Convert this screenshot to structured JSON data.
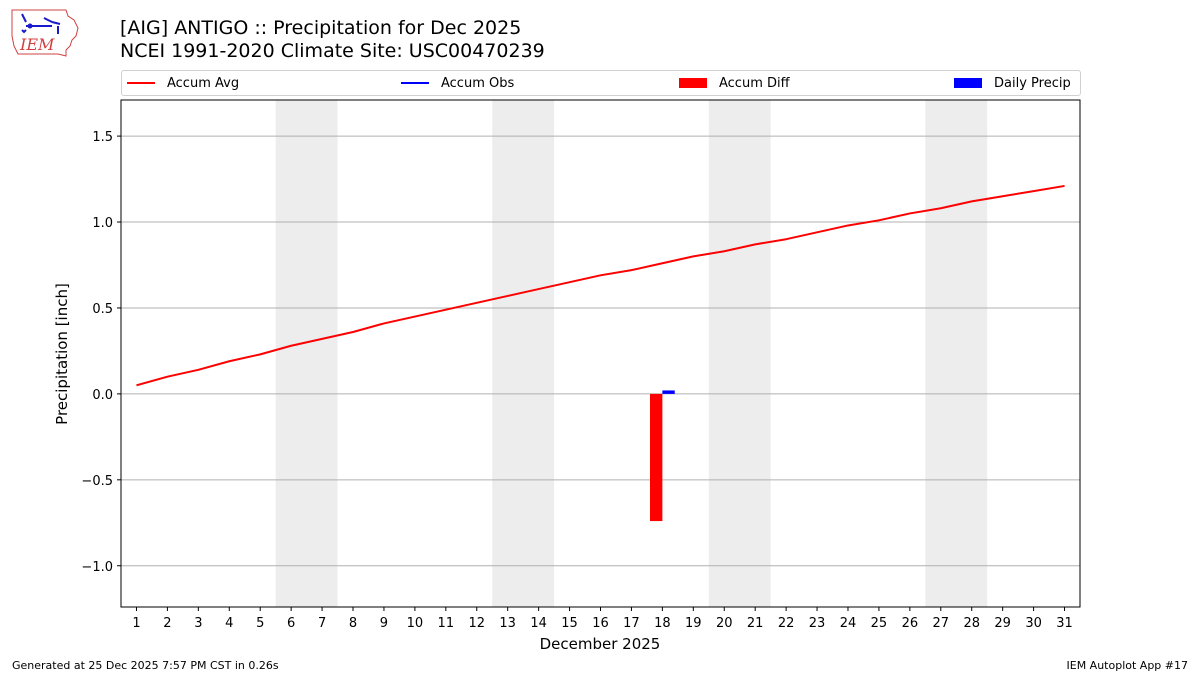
{
  "header": {
    "logo_text": "IEM",
    "title_line1": "[AIG] ANTIGO :: Precipitation for Dec 2025",
    "title_line2": "NCEI 1991-2020 Climate Site: USC00470239"
  },
  "legend": [
    {
      "label": "Accum Avg",
      "type": "line",
      "color": "#ff0000"
    },
    {
      "label": "Accum Obs",
      "type": "line",
      "color": "#0000ff"
    },
    {
      "label": "Accum Diff",
      "type": "patch",
      "color": "#ff0000"
    },
    {
      "label": "Daily Precip",
      "type": "patch",
      "color": "#0000ff"
    }
  ],
  "footer": {
    "left": "Generated at 25 Dec 2025 7:57 PM CST in 0.26s",
    "right": "IEM Autoplot App #17"
  },
  "colors": {
    "weekend_shade": "#ededed",
    "grid": "#b0b0b0",
    "avg_line": "#ff0000",
    "diff_bar": "#ff0000",
    "daily_bar": "#0000ff"
  },
  "chart_data": {
    "type": "line",
    "title": "[AIG] ANTIGO :: Precipitation for Dec 2025",
    "subtitle": "NCEI 1991-2020 Climate Site: USC00470239",
    "xlabel": "December 2025",
    "ylabel": "Precipitation [inch]",
    "x": [
      1,
      2,
      3,
      4,
      5,
      6,
      7,
      8,
      9,
      10,
      11,
      12,
      13,
      14,
      15,
      16,
      17,
      18,
      19,
      20,
      21,
      22,
      23,
      24,
      25,
      26,
      27,
      28,
      29,
      30,
      31
    ],
    "xticks": [
      "1",
      "2",
      "3",
      "4",
      "5",
      "6",
      "7",
      "8",
      "9",
      "10",
      "11",
      "12",
      "13",
      "14",
      "15",
      "16",
      "17",
      "18",
      "19",
      "20",
      "21",
      "22",
      "23",
      "24",
      "25",
      "26",
      "27",
      "28",
      "29",
      "30",
      "31"
    ],
    "yticks": [
      -1.0,
      -0.5,
      0.0,
      0.5,
      1.0,
      1.5
    ],
    "ytick_labels": [
      "−1.0",
      "−0.5",
      "0.0",
      "0.5",
      "1.0",
      "1.5"
    ],
    "ylim": [
      -1.24,
      1.71
    ],
    "xlim": [
      0.5,
      31.5
    ],
    "grid": "y",
    "legend_position": "top (above plot, 4 columns)",
    "weekend_shading": [
      [
        5.5,
        7.5
      ],
      [
        12.5,
        14.5
      ],
      [
        19.5,
        21.5
      ],
      [
        26.5,
        28.5
      ]
    ],
    "series": [
      {
        "name": "Accum Avg",
        "type": "line",
        "color": "#ff0000",
        "x": [
          1,
          2,
          3,
          4,
          5,
          6,
          7,
          8,
          9,
          10,
          11,
          12,
          13,
          14,
          15,
          16,
          17,
          18,
          19,
          20,
          21,
          22,
          23,
          24,
          25,
          26,
          27,
          28,
          29,
          30,
          31
        ],
        "values": [
          0.05,
          0.1,
          0.14,
          0.19,
          0.23,
          0.28,
          0.32,
          0.36,
          0.41,
          0.45,
          0.49,
          0.53,
          0.57,
          0.61,
          0.65,
          0.69,
          0.72,
          0.76,
          0.8,
          0.83,
          0.87,
          0.9,
          0.94,
          0.98,
          1.01,
          1.05,
          1.08,
          1.12,
          1.15,
          1.18,
          1.21
        ]
      },
      {
        "name": "Accum Obs",
        "type": "line",
        "color": "#0000ff",
        "x": [],
        "values": []
      },
      {
        "name": "Accum Diff",
        "type": "bar",
        "color": "#ff0000",
        "x": [
          18
        ],
        "values": [
          -0.74
        ],
        "offset": -0.2,
        "width": 0.4
      },
      {
        "name": "Daily Precip",
        "type": "bar",
        "color": "#0000ff",
        "x": [
          18
        ],
        "values": [
          0.02
        ],
        "offset": 0.2,
        "width": 0.4
      }
    ]
  }
}
